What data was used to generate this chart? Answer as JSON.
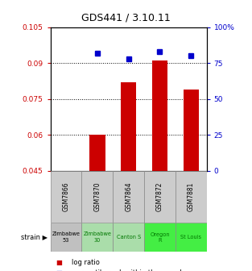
{
  "title": "GDS441 / 3.10.11",
  "samples": [
    "GSM7866",
    "GSM7870",
    "GSM7864",
    "GSM7872",
    "GSM7881"
  ],
  "log_ratios": [
    0.045,
    0.06,
    0.082,
    0.091,
    0.079
  ],
  "percentile_ranks": [
    null,
    82,
    78,
    83,
    80
  ],
  "strains": [
    "Zimbabwe\n53",
    "Zimbabwe\n30",
    "Canton S",
    "Oregon\nR",
    "St Louis"
  ],
  "strain_colors": [
    "#c0c0c0",
    "#aaddaa",
    "#aaddaa",
    "#44ee44",
    "#44ee44"
  ],
  "strain_text_colors": [
    "#000000",
    "#007700",
    "#007700",
    "#007700",
    "#007700"
  ],
  "ylim_left": [
    0.045,
    0.105
  ],
  "ylim_right": [
    0,
    100
  ],
  "yticks_left": [
    0.045,
    0.06,
    0.075,
    0.09,
    0.105
  ],
  "yticks_right": [
    0,
    25,
    50,
    75,
    100
  ],
  "ytick_labels_right": [
    "0",
    "25",
    "50",
    "75",
    "100%"
  ],
  "bar_color": "#cc0000",
  "dot_color": "#0000cc",
  "bar_width": 0.5,
  "baseline": 0.045,
  "gsm_row_color": "#cccccc",
  "strain_label": "strain"
}
